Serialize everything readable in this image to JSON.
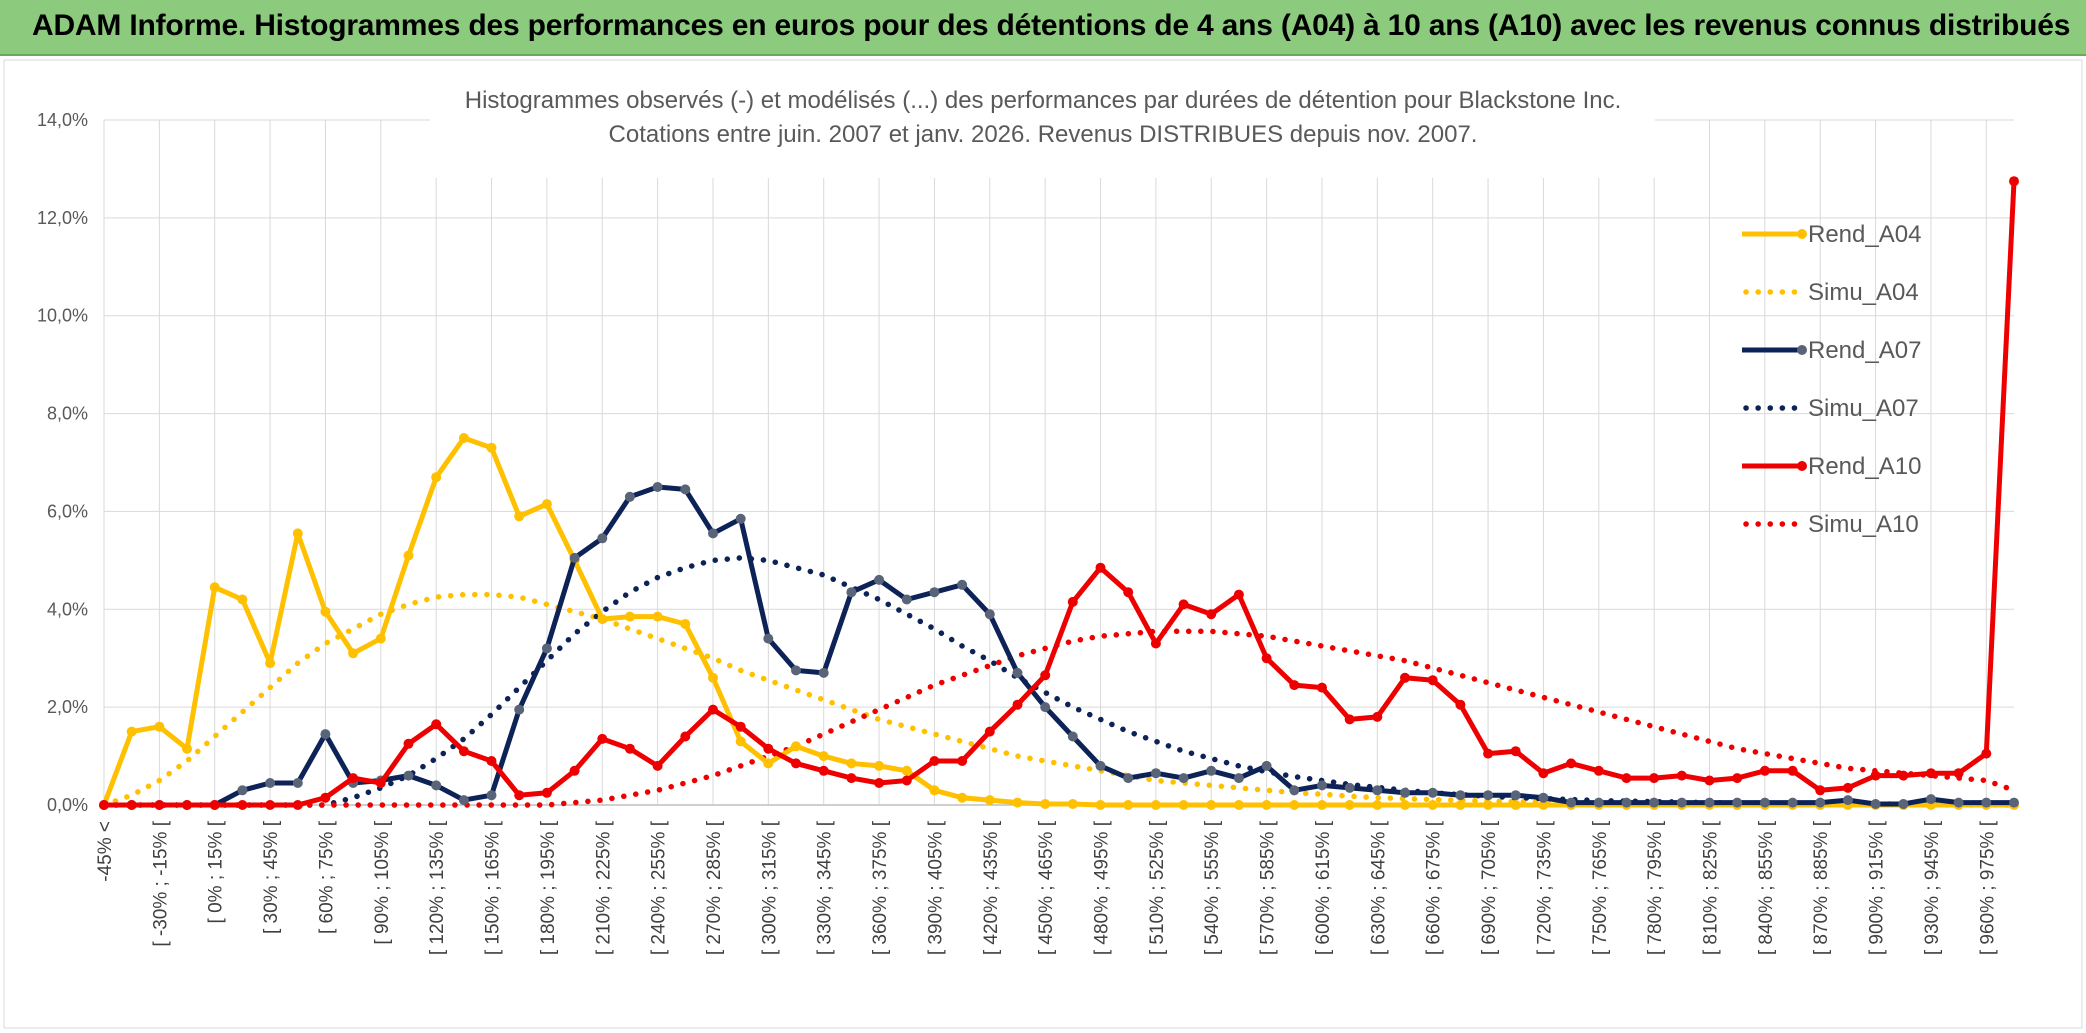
{
  "header": {
    "title": "ADAM Informe. Histogrammes des performances en euros pour des détentions de 4 ans (A04) à 10 ans (A10) avec les revenus connus distribués"
  },
  "chart_data": {
    "type": "line",
    "title": "Histogrammes observés (-) et modélisés (...) des performances par durées de détention pour Blackstone Inc.",
    "subtitle": "Cotations entre juin. 2007 et janv. 2026. Revenus DISTRIBUES depuis nov. 2007.",
    "xlabel": "",
    "ylabel": "",
    "ylim": [
      0,
      14
    ],
    "y_ticks": [
      "0,0%",
      "2,0%",
      "4,0%",
      "6,0%",
      "8,0%",
      "10,0%",
      "12,0%",
      "14,0%"
    ],
    "grid": true,
    "legend_position": "right",
    "x_labels_shown": [
      "-45% <",
      "[ -30% ; -15% [",
      "[ 0% ; 15% [",
      "[ 30% ; 45% [",
      "[ 60% ; 75% [",
      "[ 90% ; 105% [",
      "[ 120% ; 135% [",
      "[ 150% ; 165% [",
      "[ 180% ; 195% [",
      "[ 210% ; 225% [",
      "[ 240% ; 255% [",
      "[ 270% ; 285% [",
      "[ 300% ; 315% [",
      "[ 330% ; 345% [",
      "[ 360% ; 375% [",
      "[ 390% ; 405% [",
      "[ 420% ; 435% [",
      "[ 450% ; 465% [",
      "[ 480% ; 495% [",
      "[ 510% ; 525% [",
      "[ 540% ; 555% [",
      "[ 570% ; 585% [",
      "[ 600% ; 615% [",
      "[ 630% ; 645% [",
      "[ 660% ; 675% [",
      "[ 690% ; 705% [",
      "[ 720% ; 735% [",
      "[ 750% ; 765% [",
      "[ 780% ; 795% [",
      "[ 810% ; 825% [",
      "[ 840% ; 855% [",
      "[ 870% ; 885% [",
      "[ 900% ; 915% [",
      "[ 930% ; 945% [",
      "[ 960% ; 975% ["
    ],
    "series": [
      {
        "name": "Rend_A04",
        "style": "solid",
        "color": "#ffc000",
        "values": [
          0.0,
          1.5,
          1.6,
          1.15,
          4.45,
          4.2,
          2.9,
          5.55,
          3.95,
          3.1,
          3.4,
          5.1,
          6.7,
          7.5,
          7.3,
          5.9,
          6.15,
          5.0,
          3.8,
          3.85,
          3.85,
          3.7,
          2.6,
          1.3,
          0.85,
          1.2,
          1.0,
          0.85,
          0.8,
          0.7,
          0.3,
          0.15,
          0.1,
          0.05,
          0.02,
          0.02,
          0.0,
          0.0,
          0.0,
          0.0,
          0.0,
          0.0,
          0.0,
          0.0,
          0.0,
          0.0,
          0.0,
          0.0,
          0.0,
          0.0,
          0.0,
          0.0,
          0.0,
          0.0,
          0.0,
          0.0,
          0.0,
          0.0,
          0.0,
          0.0,
          0.0,
          0.0,
          0.0,
          0.0,
          0.0,
          0.0,
          0.0,
          0.0,
          0.0,
          0.0
        ]
      },
      {
        "name": "Simu_A04",
        "style": "dotted",
        "color": "#ffc000",
        "values": [
          0.0,
          0.2,
          0.5,
          0.9,
          1.4,
          1.9,
          2.4,
          2.9,
          3.3,
          3.6,
          3.9,
          4.1,
          4.25,
          4.3,
          4.3,
          4.25,
          4.1,
          3.95,
          3.8,
          3.6,
          3.4,
          3.2,
          3.0,
          2.75,
          2.55,
          2.35,
          2.15,
          1.95,
          1.75,
          1.6,
          1.45,
          1.3,
          1.15,
          1.0,
          0.9,
          0.8,
          0.7,
          0.6,
          0.5,
          0.45,
          0.4,
          0.35,
          0.3,
          0.25,
          0.22,
          0.18,
          0.15,
          0.13,
          0.11,
          0.1,
          0.08,
          0.07,
          0.06,
          0.05,
          0.04,
          0.04,
          0.03,
          0.03,
          0.02,
          0.02,
          0.02,
          0.01,
          0.01,
          0.01,
          0.01,
          0.01,
          0.0,
          0.0,
          0.0,
          0.0
        ]
      },
      {
        "name": "Rend_A07",
        "style": "solid",
        "color": "#0d2257",
        "values": [
          0.0,
          0.0,
          0.0,
          0.0,
          0.0,
          0.3,
          0.45,
          0.45,
          1.45,
          0.45,
          0.5,
          0.6,
          0.4,
          0.1,
          0.2,
          1.95,
          3.2,
          5.05,
          5.45,
          6.3,
          6.5,
          6.45,
          5.55,
          5.85,
          3.4,
          2.75,
          2.7,
          4.35,
          4.6,
          4.2,
          4.35,
          4.5,
          3.9,
          2.7,
          2.0,
          1.4,
          0.8,
          0.55,
          0.65,
          0.55,
          0.7,
          0.55,
          0.8,
          0.3,
          0.4,
          0.35,
          0.3,
          0.25,
          0.25,
          0.2,
          0.2,
          0.2,
          0.15,
          0.05,
          0.05,
          0.05,
          0.05,
          0.05,
          0.05,
          0.05,
          0.05,
          0.05,
          0.05,
          0.1,
          0.02,
          0.02,
          0.12,
          0.05,
          0.05,
          0.05
        ]
      },
      {
        "name": "Simu_A07",
        "style": "dotted",
        "color": "#0d2257",
        "values": [
          0.0,
          0.0,
          0.0,
          0.0,
          0.0,
          0.0,
          0.0,
          0.0,
          0.0,
          0.15,
          0.35,
          0.6,
          0.95,
          1.35,
          1.85,
          2.4,
          2.95,
          3.5,
          3.95,
          4.35,
          4.65,
          4.85,
          5.0,
          5.05,
          5.0,
          4.85,
          4.7,
          4.45,
          4.2,
          3.9,
          3.6,
          3.25,
          2.95,
          2.6,
          2.3,
          2.0,
          1.75,
          1.5,
          1.3,
          1.1,
          0.95,
          0.8,
          0.68,
          0.58,
          0.5,
          0.42,
          0.36,
          0.3,
          0.25,
          0.21,
          0.18,
          0.15,
          0.13,
          0.11,
          0.09,
          0.08,
          0.07,
          0.06,
          0.05,
          0.04,
          0.04,
          0.03,
          0.03,
          0.02,
          0.02,
          0.02,
          0.01,
          0.01,
          0.01,
          0.01
        ]
      },
      {
        "name": "Rend_A10",
        "style": "solid",
        "color": "#ee0000",
        "values": [
          0.0,
          0.0,
          0.0,
          0.0,
          0.0,
          0.0,
          0.0,
          0.0,
          0.15,
          0.55,
          0.45,
          1.25,
          1.65,
          1.1,
          0.9,
          0.2,
          0.25,
          0.7,
          1.35,
          1.15,
          0.8,
          1.4,
          1.95,
          1.6,
          1.15,
          0.85,
          0.7,
          0.55,
          0.45,
          0.5,
          0.9,
          0.9,
          1.5,
          2.05,
          2.65,
          4.15,
          4.85,
          4.35,
          3.3,
          4.1,
          3.9,
          4.3,
          3.0,
          2.45,
          2.4,
          1.75,
          1.8,
          2.6,
          2.55,
          2.05,
          1.05,
          1.1,
          0.65,
          0.85,
          0.7,
          0.55,
          0.55,
          0.6,
          0.5,
          0.55,
          0.7,
          0.7,
          0.3,
          0.35,
          0.6,
          0.6,
          0.65,
          0.65,
          1.05,
          12.75
        ]
      },
      {
        "name": "Simu_A10",
        "style": "dotted",
        "color": "#ee0000",
        "values": [
          0.0,
          0.0,
          0.0,
          0.0,
          0.0,
          0.0,
          0.0,
          0.0,
          0.0,
          0.0,
          0.0,
          0.0,
          0.0,
          0.0,
          0.0,
          0.0,
          0.0,
          0.05,
          0.1,
          0.2,
          0.3,
          0.45,
          0.6,
          0.8,
          1.0,
          1.2,
          1.45,
          1.7,
          1.95,
          2.2,
          2.45,
          2.65,
          2.85,
          3.05,
          3.2,
          3.35,
          3.45,
          3.5,
          3.55,
          3.55,
          3.55,
          3.5,
          3.45,
          3.35,
          3.25,
          3.15,
          3.05,
          2.95,
          2.8,
          2.65,
          2.5,
          2.35,
          2.2,
          2.05,
          1.9,
          1.75,
          1.6,
          1.45,
          1.3,
          1.15,
          1.05,
          0.95,
          0.85,
          0.75,
          0.7,
          0.65,
          0.6,
          0.55,
          0.5,
          0.3
        ]
      }
    ]
  }
}
